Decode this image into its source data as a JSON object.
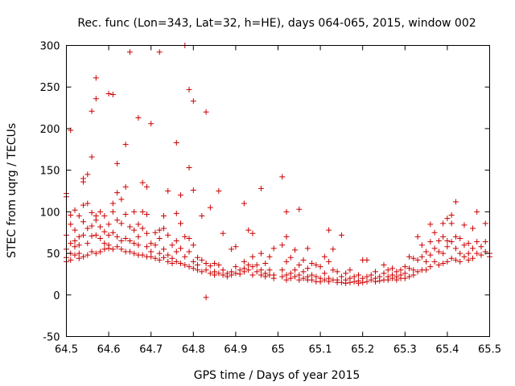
{
  "chart_data": {
    "type": "scatter",
    "title": "Rec. func (Lon=343, Lat=32, h=HE), days 064-065, 2015, window 002",
    "xlabel": "GPS time / Days of year 2015",
    "ylabel": "STEC from uqrg / TECUs",
    "xlim": [
      64.5,
      65.5
    ],
    "ylim": [
      -50,
      300
    ],
    "x_ticks": [
      "64.5",
      "64.6",
      "64.7",
      "64.8",
      "64.9",
      "65",
      "65.1",
      "65.2",
      "65.3",
      "65.4",
      "65.5"
    ],
    "y_ticks": [
      "-50",
      "0",
      "50",
      "100",
      "150",
      "200",
      "250",
      "300"
    ],
    "grid": false,
    "legend": "none",
    "marker": "+",
    "color": "#cc0000",
    "points": [
      [
        64.5,
        122
      ],
      [
        64.5,
        118
      ],
      [
        64.51,
        198
      ],
      [
        64.5,
        72
      ],
      [
        64.5,
        55
      ],
      [
        64.5,
        45
      ],
      [
        64.5,
        40
      ],
      [
        64.51,
        96
      ],
      [
        64.51,
        85
      ],
      [
        64.51,
        62
      ],
      [
        64.51,
        50
      ],
      [
        64.51,
        42
      ],
      [
        64.52,
        102
      ],
      [
        64.52,
        78
      ],
      [
        64.52,
        65
      ],
      [
        64.52,
        58
      ],
      [
        64.52,
        48
      ],
      [
        64.53,
        95
      ],
      [
        64.53,
        70
      ],
      [
        64.53,
        60
      ],
      [
        64.53,
        50
      ],
      [
        64.53,
        44
      ],
      [
        64.54,
        140
      ],
      [
        64.54,
        136
      ],
      [
        64.54,
        108
      ],
      [
        64.54,
        88
      ],
      [
        64.54,
        72
      ],
      [
        64.54,
        46
      ],
      [
        64.55,
        145
      ],
      [
        64.55,
        110
      ],
      [
        64.55,
        80
      ],
      [
        64.55,
        62
      ],
      [
        64.55,
        48
      ],
      [
        64.56,
        221
      ],
      [
        64.56,
        166
      ],
      [
        64.56,
        99
      ],
      [
        64.56,
        83
      ],
      [
        64.56,
        71
      ],
      [
        64.56,
        52
      ],
      [
        64.57,
        261
      ],
      [
        64.57,
        236
      ],
      [
        64.57,
        95
      ],
      [
        64.57,
        90
      ],
      [
        64.57,
        72
      ],
      [
        64.57,
        50
      ],
      [
        64.58,
        100
      ],
      [
        64.58,
        82
      ],
      [
        64.58,
        68
      ],
      [
        64.58,
        52
      ],
      [
        64.59,
        95
      ],
      [
        64.59,
        76
      ],
      [
        64.59,
        62
      ],
      [
        64.59,
        55
      ],
      [
        64.6,
        242
      ],
      [
        64.6,
        85
      ],
      [
        64.6,
        72
      ],
      [
        64.6,
        60
      ],
      [
        64.6,
        56
      ],
      [
        64.61,
        241
      ],
      [
        64.61,
        110
      ],
      [
        64.61,
        100
      ],
      [
        64.61,
        75
      ],
      [
        64.61,
        55
      ],
      [
        64.62,
        158
      ],
      [
        64.62,
        123
      ],
      [
        64.62,
        90
      ],
      [
        64.62,
        70
      ],
      [
        64.62,
        58
      ],
      [
        64.63,
        115
      ],
      [
        64.63,
        86
      ],
      [
        64.63,
        65
      ],
      [
        64.63,
        55
      ],
      [
        64.64,
        181
      ],
      [
        64.64,
        130
      ],
      [
        64.64,
        97
      ],
      [
        64.64,
        68
      ],
      [
        64.64,
        52
      ],
      [
        64.65,
        292
      ],
      [
        64.65,
        82
      ],
      [
        64.65,
        65
      ],
      [
        64.65,
        52
      ],
      [
        64.66,
        100
      ],
      [
        64.66,
        78
      ],
      [
        64.66,
        62
      ],
      [
        64.66,
        50
      ],
      [
        64.67,
        213
      ],
      [
        64.67,
        85
      ],
      [
        64.67,
        70
      ],
      [
        64.67,
        60
      ],
      [
        64.67,
        48
      ],
      [
        64.68,
        135
      ],
      [
        64.68,
        100
      ],
      [
        64.68,
        80
      ],
      [
        64.68,
        48
      ],
      [
        64.69,
        130
      ],
      [
        64.69,
        97
      ],
      [
        64.69,
        74
      ],
      [
        64.69,
        58
      ],
      [
        64.69,
        46
      ],
      [
        64.7,
        206
      ],
      [
        64.7,
        62
      ],
      [
        64.7,
        52
      ],
      [
        64.7,
        46
      ],
      [
        64.71,
        75
      ],
      [
        64.71,
        60
      ],
      [
        64.71,
        44
      ],
      [
        64.72,
        292
      ],
      [
        64.72,
        78
      ],
      [
        64.72,
        68
      ],
      [
        64.72,
        50
      ],
      [
        64.72,
        42
      ],
      [
        64.73,
        95
      ],
      [
        64.73,
        80
      ],
      [
        64.73,
        55
      ],
      [
        64.73,
        45
      ],
      [
        64.74,
        125
      ],
      [
        64.74,
        72
      ],
      [
        64.74,
        48
      ],
      [
        64.74,
        40
      ],
      [
        64.75,
        60
      ],
      [
        64.75,
        44
      ],
      [
        64.75,
        38
      ],
      [
        64.76,
        183
      ],
      [
        64.76,
        98
      ],
      [
        64.76,
        65
      ],
      [
        64.76,
        52
      ],
      [
        64.76,
        40
      ],
      [
        64.77,
        120
      ],
      [
        64.77,
        86
      ],
      [
        64.77,
        56
      ],
      [
        64.77,
        38
      ],
      [
        64.78,
        300
      ],
      [
        64.78,
        70
      ],
      [
        64.78,
        46
      ],
      [
        64.78,
        36
      ],
      [
        64.79,
        247
      ],
      [
        64.79,
        153
      ],
      [
        64.79,
        68
      ],
      [
        64.79,
        52
      ],
      [
        64.79,
        34
      ],
      [
        64.8,
        233
      ],
      [
        64.8,
        126
      ],
      [
        64.8,
        60
      ],
      [
        64.8,
        40
      ],
      [
        64.8,
        32
      ],
      [
        64.81,
        45
      ],
      [
        64.81,
        36
      ],
      [
        64.81,
        30
      ],
      [
        64.82,
        95
      ],
      [
        64.82,
        42
      ],
      [
        64.82,
        28
      ],
      [
        64.83,
        220
      ],
      [
        64.83,
        -3
      ],
      [
        64.83,
        38
      ],
      [
        64.83,
        30
      ],
      [
        64.84,
        105
      ],
      [
        64.84,
        35
      ],
      [
        64.84,
        26
      ],
      [
        64.85,
        38
      ],
      [
        64.85,
        28
      ],
      [
        64.85,
        24
      ],
      [
        64.86,
        125
      ],
      [
        64.86,
        36
      ],
      [
        64.86,
        26
      ],
      [
        64.87,
        74
      ],
      [
        64.87,
        30
      ],
      [
        64.87,
        24
      ],
      [
        64.88,
        26
      ],
      [
        64.88,
        22
      ],
      [
        64.89,
        55
      ],
      [
        64.89,
        28
      ],
      [
        64.89,
        24
      ],
      [
        64.9,
        58
      ],
      [
        64.9,
        34
      ],
      [
        64.9,
        26
      ],
      [
        64.91,
        30
      ],
      [
        64.91,
        25
      ],
      [
        64.92,
        110
      ],
      [
        64.92,
        40
      ],
      [
        64.92,
        32
      ],
      [
        64.92,
        28
      ],
      [
        64.93,
        78
      ],
      [
        64.93,
        36
      ],
      [
        64.93,
        30
      ],
      [
        64.94,
        74
      ],
      [
        64.94,
        46
      ],
      [
        64.94,
        34
      ],
      [
        64.94,
        24
      ],
      [
        64.95,
        36
      ],
      [
        64.95,
        28
      ],
      [
        64.96,
        128
      ],
      [
        64.96,
        50
      ],
      [
        64.96,
        30
      ],
      [
        64.96,
        24
      ],
      [
        64.97,
        38
      ],
      [
        64.97,
        26
      ],
      [
        64.97,
        22
      ],
      [
        64.98,
        46
      ],
      [
        64.98,
        30
      ],
      [
        64.98,
        24
      ],
      [
        64.99,
        56
      ],
      [
        64.99,
        24
      ],
      [
        64.99,
        20
      ],
      [
        65.01,
        142
      ],
      [
        65.01,
        60
      ],
      [
        65.01,
        30
      ],
      [
        65.01,
        22
      ],
      [
        65.02,
        100
      ],
      [
        65.02,
        70
      ],
      [
        65.02,
        40
      ],
      [
        65.02,
        24
      ],
      [
        65.02,
        18
      ],
      [
        65.03,
        45
      ],
      [
        65.03,
        26
      ],
      [
        65.03,
        20
      ],
      [
        65.04,
        54
      ],
      [
        65.04,
        30
      ],
      [
        65.04,
        22
      ],
      [
        65.05,
        103
      ],
      [
        65.05,
        36
      ],
      [
        65.05,
        24
      ],
      [
        65.05,
        18
      ],
      [
        65.06,
        42
      ],
      [
        65.06,
        28
      ],
      [
        65.06,
        20
      ],
      [
        65.07,
        56
      ],
      [
        65.07,
        32
      ],
      [
        65.07,
        22
      ],
      [
        65.07,
        18
      ],
      [
        65.08,
        38
      ],
      [
        65.08,
        24
      ],
      [
        65.08,
        18
      ],
      [
        65.09,
        36
      ],
      [
        65.09,
        22
      ],
      [
        65.09,
        16
      ],
      [
        65.1,
        34
      ],
      [
        65.1,
        20
      ],
      [
        65.1,
        16
      ],
      [
        65.11,
        46
      ],
      [
        65.11,
        26
      ],
      [
        65.11,
        18
      ],
      [
        65.12,
        78
      ],
      [
        65.12,
        40
      ],
      [
        65.12,
        20
      ],
      [
        65.12,
        16
      ],
      [
        65.13,
        55
      ],
      [
        65.13,
        30
      ],
      [
        65.13,
        18
      ],
      [
        65.14,
        28
      ],
      [
        65.14,
        18
      ],
      [
        65.14,
        15
      ],
      [
        65.15,
        72
      ],
      [
        65.15,
        22
      ],
      [
        65.15,
        15
      ],
      [
        65.16,
        26
      ],
      [
        65.16,
        18
      ],
      [
        65.16,
        14
      ],
      [
        65.17,
        30
      ],
      [
        65.17,
        20
      ],
      [
        65.17,
        15
      ],
      [
        65.18,
        22
      ],
      [
        65.18,
        16
      ],
      [
        65.19,
        24
      ],
      [
        65.19,
        17
      ],
      [
        65.19,
        14
      ],
      [
        65.2,
        42
      ],
      [
        65.2,
        20
      ],
      [
        65.2,
        15
      ],
      [
        65.21,
        42
      ],
      [
        65.21,
        22
      ],
      [
        65.21,
        16
      ],
      [
        65.22,
        24
      ],
      [
        65.22,
        18
      ],
      [
        65.23,
        28
      ],
      [
        65.23,
        20
      ],
      [
        65.23,
        16
      ],
      [
        65.24,
        22
      ],
      [
        65.24,
        17
      ],
      [
        65.25,
        36
      ],
      [
        65.25,
        26
      ],
      [
        65.25,
        18
      ],
      [
        65.26,
        30
      ],
      [
        65.26,
        22
      ],
      [
        65.26,
        18
      ],
      [
        65.27,
        32
      ],
      [
        65.27,
        24
      ],
      [
        65.27,
        20
      ],
      [
        65.28,
        28
      ],
      [
        65.28,
        22
      ],
      [
        65.28,
        18
      ],
      [
        65.29,
        30
      ],
      [
        65.29,
        24
      ],
      [
        65.29,
        20
      ],
      [
        65.3,
        34
      ],
      [
        65.3,
        26
      ],
      [
        65.3,
        20
      ],
      [
        65.31,
        46
      ],
      [
        65.31,
        32
      ],
      [
        65.31,
        22
      ],
      [
        65.32,
        44
      ],
      [
        65.32,
        30
      ],
      [
        65.32,
        24
      ],
      [
        65.33,
        70
      ],
      [
        65.33,
        42
      ],
      [
        65.33,
        28
      ],
      [
        65.34,
        60
      ],
      [
        65.34,
        46
      ],
      [
        65.34,
        30
      ],
      [
        65.35,
        52
      ],
      [
        65.35,
        40
      ],
      [
        65.35,
        30
      ],
      [
        65.36,
        85
      ],
      [
        65.36,
        64
      ],
      [
        65.36,
        48
      ],
      [
        65.36,
        34
      ],
      [
        65.37,
        75
      ],
      [
        65.37,
        56
      ],
      [
        65.37,
        40
      ],
      [
        65.38,
        65
      ],
      [
        65.38,
        52
      ],
      [
        65.38,
        36
      ],
      [
        65.39,
        86
      ],
      [
        65.39,
        70
      ],
      [
        65.39,
        50
      ],
      [
        65.39,
        38
      ],
      [
        65.4,
        92
      ],
      [
        65.4,
        65
      ],
      [
        65.4,
        58
      ],
      [
        65.4,
        40
      ],
      [
        65.41,
        96
      ],
      [
        65.41,
        86
      ],
      [
        65.41,
        64
      ],
      [
        65.41,
        44
      ],
      [
        65.42,
        112
      ],
      [
        65.42,
        70
      ],
      [
        65.42,
        56
      ],
      [
        65.42,
        42
      ],
      [
        65.43,
        68
      ],
      [
        65.43,
        50
      ],
      [
        65.43,
        40
      ],
      [
        65.44,
        84
      ],
      [
        65.44,
        60
      ],
      [
        65.44,
        46
      ],
      [
        65.45,
        62
      ],
      [
        65.45,
        50
      ],
      [
        65.45,
        42
      ],
      [
        65.46,
        80
      ],
      [
        65.46,
        56
      ],
      [
        65.46,
        44
      ],
      [
        65.47,
        100
      ],
      [
        65.47,
        64
      ],
      [
        65.47,
        50
      ],
      [
        65.48,
        58
      ],
      [
        65.48,
        48
      ],
      [
        65.49,
        86
      ],
      [
        65.49,
        64
      ],
      [
        65.49,
        52
      ],
      [
        65.5,
        50
      ],
      [
        65.5,
        46
      ]
    ]
  }
}
